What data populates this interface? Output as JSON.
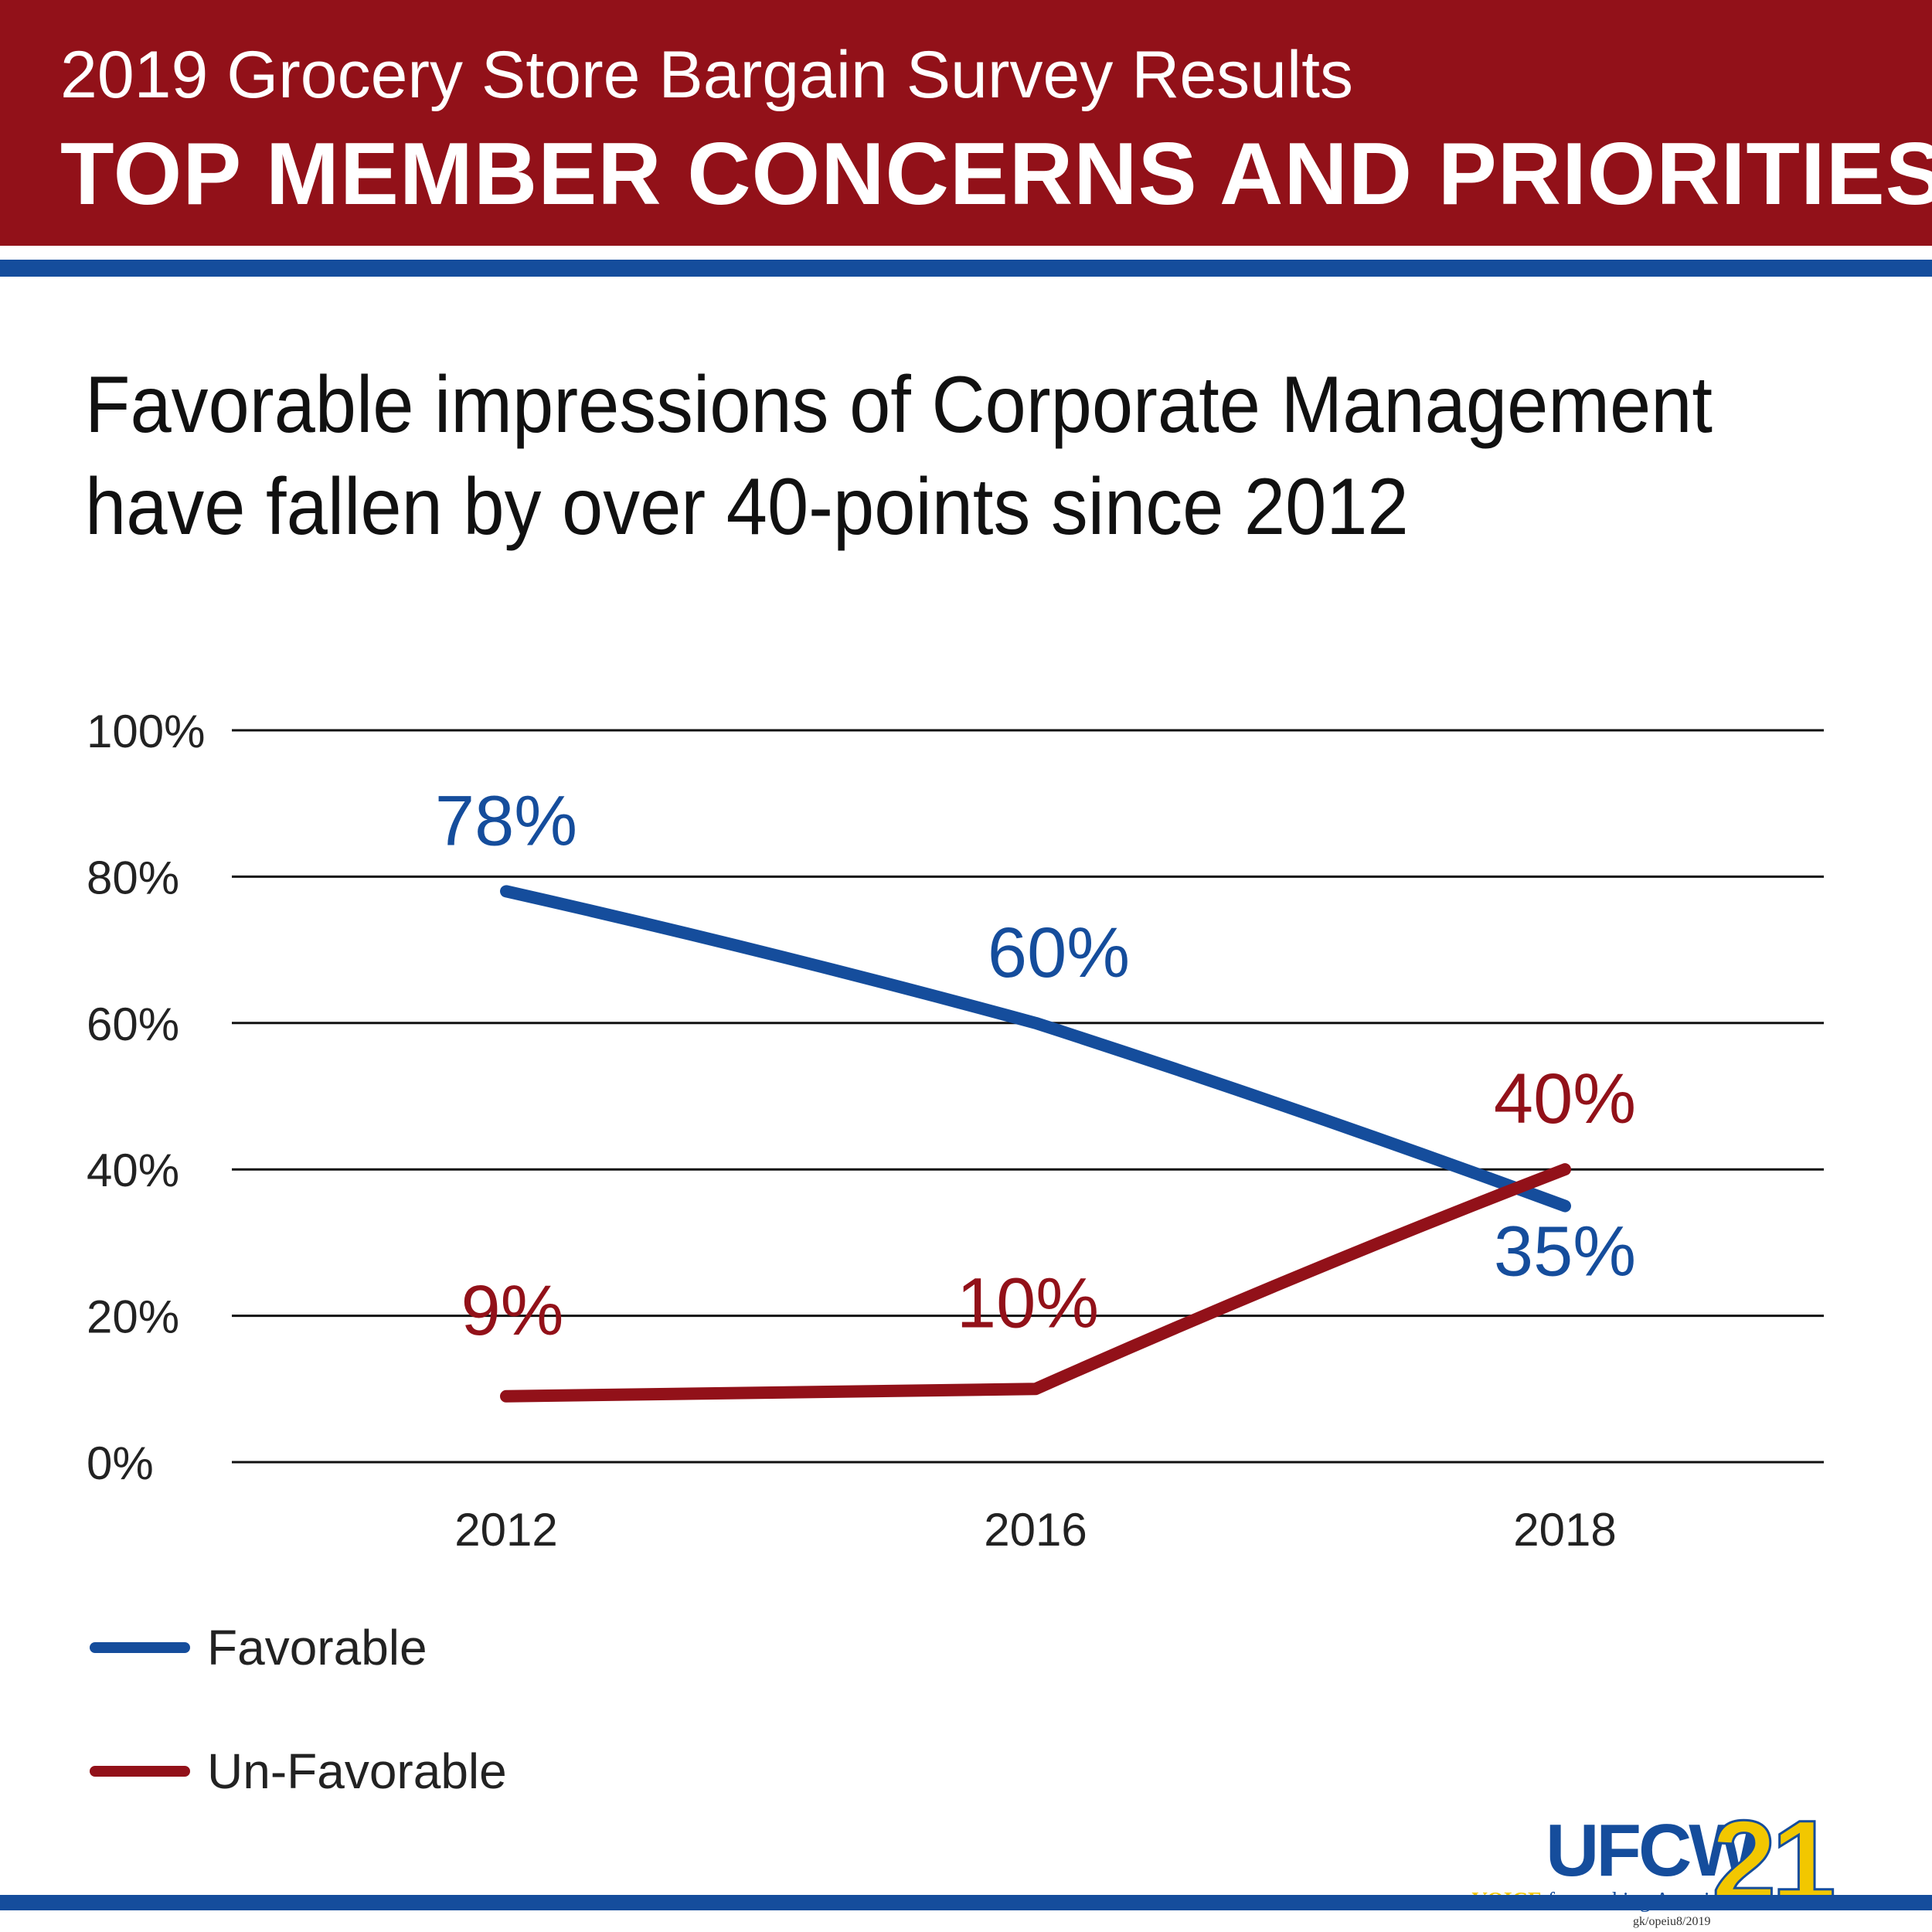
{
  "header": {
    "subtitle": "2019 Grocery Store Bargain Survey Results",
    "title": "TOP MEMBER CONCERNS AND PRIORITIES"
  },
  "headline": "Favorable impressions of Corporate Management have fallen by over 40-points since 2012",
  "colors": {
    "brand_red": "#921119",
    "brand_blue": "#154d9c",
    "logo_yellow": "#f2c700"
  },
  "chart_data": {
    "type": "line",
    "x": [
      "2012",
      "2016",
      "2018"
    ],
    "series": [
      {
        "name": "Favorable",
        "color": "#154d9c",
        "values": [
          78,
          60,
          35
        ],
        "labels": [
          "78%",
          "60%",
          "35%"
        ]
      },
      {
        "name": "Un-Favorable",
        "color": "#921119",
        "values": [
          9,
          10,
          40
        ],
        "labels": [
          "9%",
          "10%",
          "40%"
        ]
      }
    ],
    "ylim": [
      0,
      100
    ],
    "yticks": [
      0,
      20,
      40,
      60,
      80,
      100
    ],
    "ytick_labels": [
      "0%",
      "20%",
      "40%",
      "60%",
      "80%",
      "100%"
    ],
    "grid": true,
    "legend_position": "bottom-left"
  },
  "legend": {
    "favorable": "Favorable",
    "unfavorable": "Un-Favorable"
  },
  "logo": {
    "name": "UFCW",
    "number": "21",
    "tagline_prefix": "a",
    "tagline_highlight": "VOICE",
    "tagline_suffix": "for working America",
    "credit": "gk/opeiu8/2019"
  }
}
